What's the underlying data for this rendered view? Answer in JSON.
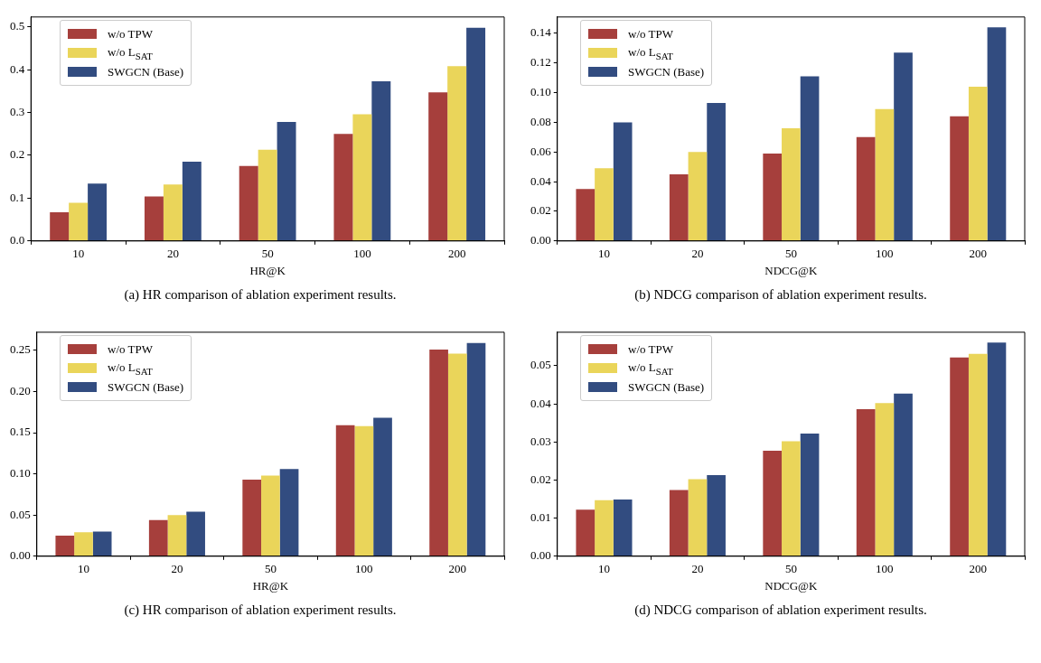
{
  "chart_data": [
    {
      "type": "bar",
      "title": "(a)  HR comparison of ablation experiment results.",
      "xlabel": "HR@K",
      "categories": [
        "10",
        "20",
        "50",
        "100",
        "200"
      ],
      "legend": "top left",
      "ylim": [
        0,
        0.523
      ],
      "yticks": [
        {
          "value": 0,
          "label": "0.0"
        },
        {
          "value": 0.1,
          "label": "0.1"
        },
        {
          "value": 0.2,
          "label": "0.2"
        },
        {
          "value": 0.3,
          "label": "0.3"
        },
        {
          "value": 0.4,
          "label": "0.4"
        },
        {
          "value": 0.5,
          "label": "0.5"
        }
      ],
      "series": [
        {
          "name": "w/o TPW",
          "color": "#a63f3c",
          "values": [
            0.067,
            0.104,
            0.175,
            0.25,
            0.347
          ]
        },
        {
          "name": "w/o L$_{SAT}$",
          "color": "#ead55a",
          "values": [
            0.089,
            0.132,
            0.213,
            0.296,
            0.408
          ]
        },
        {
          "name": "SWGCN (Base)",
          "color": "#324c80",
          "values": [
            0.134,
            0.185,
            0.278,
            0.373,
            0.498
          ]
        }
      ]
    },
    {
      "type": "bar",
      "title": "(b)  NDCG comparison of ablation experiment results.",
      "xlabel": "NDCG@K",
      "categories": [
        "10",
        "20",
        "50",
        "100",
        "200"
      ],
      "legend": "top left",
      "ylim": [
        0,
        0.151
      ],
      "yticks": [
        {
          "value": 0,
          "label": "0.00"
        },
        {
          "value": 0.02,
          "label": "0.02"
        },
        {
          "value": 0.04,
          "label": "0.04"
        },
        {
          "value": 0.06,
          "label": "0.06"
        },
        {
          "value": 0.08,
          "label": "0.08"
        },
        {
          "value": 0.1,
          "label": "0.10"
        },
        {
          "value": 0.12,
          "label": "0.12"
        },
        {
          "value": 0.14,
          "label": "0.14"
        }
      ],
      "series": [
        {
          "name": "w/o TPW",
          "color": "#a63f3c",
          "values": [
            0.035,
            0.045,
            0.059,
            0.07,
            0.084
          ]
        },
        {
          "name": "w/o L$_{SAT}$",
          "color": "#ead55a",
          "values": [
            0.049,
            0.06,
            0.076,
            0.089,
            0.104
          ]
        },
        {
          "name": "SWGCN (Base)",
          "color": "#324c80",
          "values": [
            0.08,
            0.093,
            0.111,
            0.127,
            0.144
          ]
        }
      ]
    },
    {
      "type": "bar",
      "title": "(c)  HR comparison of ablation experiment results.",
      "xlabel": "HR@K",
      "categories": [
        "10",
        "20",
        "50",
        "100",
        "200"
      ],
      "legend": "top left",
      "ylim": [
        0,
        0.272
      ],
      "yticks": [
        {
          "value": 0,
          "label": "0.00"
        },
        {
          "value": 0.05,
          "label": "0.05"
        },
        {
          "value": 0.1,
          "label": "0.10"
        },
        {
          "value": 0.15,
          "label": "0.15"
        },
        {
          "value": 0.2,
          "label": "0.20"
        },
        {
          "value": 0.25,
          "label": "0.25"
        }
      ],
      "series": [
        {
          "name": "w/o TPW",
          "color": "#a63f3c",
          "values": [
            0.025,
            0.044,
            0.093,
            0.159,
            0.251
          ]
        },
        {
          "name": "w/o L$_{SAT}$",
          "color": "#ead55a",
          "values": [
            0.029,
            0.05,
            0.098,
            0.158,
            0.246
          ]
        },
        {
          "name": "SWGCN (Base)",
          "color": "#324c80",
          "values": [
            0.03,
            0.054,
            0.106,
            0.168,
            0.259
          ]
        }
      ]
    },
    {
      "type": "bar",
      "title": "(d)  NDCG comparison of ablation experiment results.",
      "xlabel": "NDCG@K",
      "categories": [
        "10",
        "20",
        "50",
        "100",
        "200"
      ],
      "legend": "top left",
      "ylim": [
        0,
        0.0588
      ],
      "yticks": [
        {
          "value": 0,
          "label": "0.00"
        },
        {
          "value": 0.01,
          "label": "0.01"
        },
        {
          "value": 0.02,
          "label": "0.02"
        },
        {
          "value": 0.03,
          "label": "0.03"
        },
        {
          "value": 0.04,
          "label": "0.04"
        },
        {
          "value": 0.05,
          "label": "0.05"
        }
      ],
      "series": [
        {
          "name": "w/o TPW",
          "color": "#a63f3c",
          "values": [
            0.0122,
            0.0174,
            0.0277,
            0.0386,
            0.0522
          ]
        },
        {
          "name": "w/o L$_{SAT}$",
          "color": "#ead55a",
          "values": [
            0.0147,
            0.0202,
            0.0302,
            0.0402,
            0.0531
          ]
        },
        {
          "name": "SWGCN (Base)",
          "color": "#324c80",
          "values": [
            0.0149,
            0.0213,
            0.0322,
            0.0427,
            0.0561
          ]
        }
      ]
    }
  ]
}
